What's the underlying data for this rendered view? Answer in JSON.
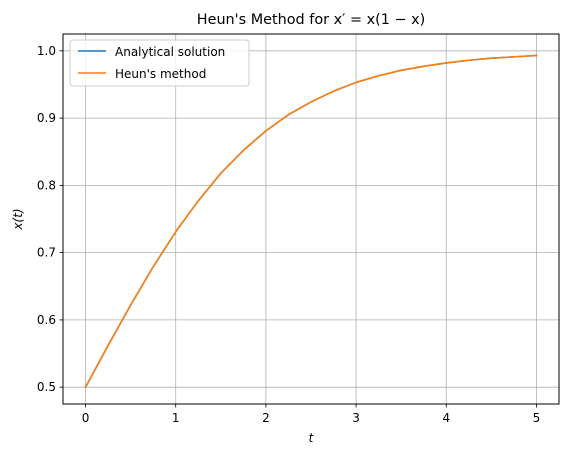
{
  "chart_data": {
    "type": "line",
    "title": "Heun's Method for x′ = x(1 − x)",
    "xlabel": "t",
    "ylabel": "x(t)",
    "xlim": [
      -0.25,
      5.25
    ],
    "ylim": [
      0.475,
      1.025
    ],
    "xticks": [
      0,
      1,
      2,
      3,
      4,
      5
    ],
    "xtick_labels": [
      "0",
      "1",
      "2",
      "3",
      "4",
      "5"
    ],
    "yticks": [
      0.5,
      0.6,
      0.7,
      0.8,
      0.9,
      1.0
    ],
    "ytick_labels": [
      "0.5",
      "0.6",
      "0.7",
      "0.8",
      "0.9",
      "1.0"
    ],
    "grid": true,
    "legend_position": "upper-left",
    "x": [
      0,
      0.25,
      0.5,
      0.75,
      1.0,
      1.25,
      1.5,
      1.75,
      2.0,
      2.25,
      2.5,
      2.75,
      3.0,
      3.25,
      3.5,
      3.75,
      4.0,
      4.25,
      4.5,
      4.75,
      5.0
    ],
    "series": [
      {
        "name": "Analytical solution",
        "color": "#1f77b4",
        "values": [
          0.5,
          0.562,
          0.622,
          0.679,
          0.731,
          0.777,
          0.818,
          0.852,
          0.881,
          0.905,
          0.924,
          0.94,
          0.953,
          0.963,
          0.971,
          0.977,
          0.982,
          0.986,
          0.989,
          0.991,
          0.993
        ]
      },
      {
        "name": "Heun's method",
        "color": "#ff7f0e",
        "values": [
          0.5,
          0.562,
          0.622,
          0.679,
          0.731,
          0.777,
          0.818,
          0.852,
          0.881,
          0.905,
          0.924,
          0.94,
          0.953,
          0.963,
          0.971,
          0.977,
          0.982,
          0.986,
          0.989,
          0.991,
          0.993
        ]
      }
    ]
  }
}
